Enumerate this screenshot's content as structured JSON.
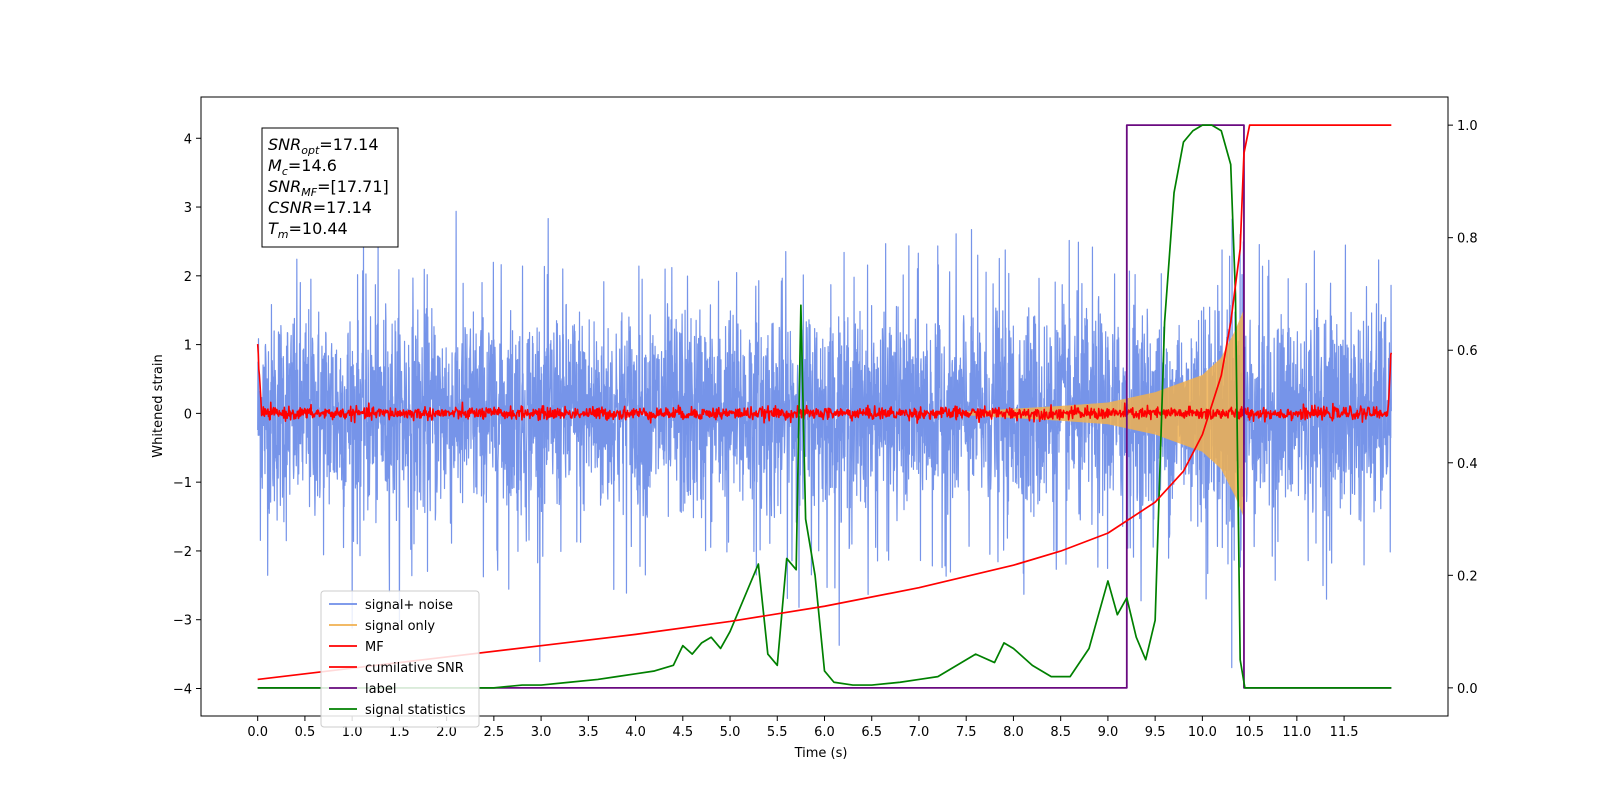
{
  "chart_data": {
    "type": "line",
    "xlabel": "Time (s)",
    "ylabel": "Whitened strain",
    "xlim": [
      -0.6,
      12.6
    ],
    "ylim": [
      -4.4,
      4.6
    ],
    "y2lim": [
      -0.05,
      1.05
    ],
    "x_ticks": [
      0.0,
      0.5,
      1.0,
      1.5,
      2.0,
      2.5,
      3.0,
      3.5,
      4.0,
      4.5,
      5.0,
      5.5,
      6.0,
      6.5,
      7.0,
      7.5,
      8.0,
      8.5,
      9.0,
      9.5,
      10.0,
      10.5,
      11.0,
      11.5
    ],
    "x_tick_labels": [
      "0.0",
      "0.5",
      "1.0",
      "1.5",
      "2.0",
      "2.5",
      "3.0",
      "3.5",
      "4.0",
      "4.5",
      "5.0",
      "5.5",
      "6.0",
      "6.5",
      "7.0",
      "7.5",
      "8.0",
      "8.5",
      "9.0",
      "9.5",
      "10.0",
      "10.5",
      "11.0",
      "11.5"
    ],
    "y_ticks": [
      4,
      3,
      2,
      1,
      0,
      -1,
      -2,
      -3,
      -4
    ],
    "y_tick_labels": [
      "4",
      "3",
      "2",
      "1",
      "0",
      "−1",
      "−2",
      "−3",
      "−4"
    ],
    "y2_ticks": [
      1.0,
      0.8,
      0.6,
      0.4,
      0.2,
      0.0
    ],
    "y2_tick_labels": [
      "1.0",
      "0.8",
      "0.6",
      "0.4",
      "0.2",
      "0.0"
    ],
    "legend_position": "lower-left",
    "grid": false,
    "series": [
      {
        "name": "signal+ noise",
        "axis": "left",
        "color": "#6f8ee8",
        "kind": "noise",
        "x_range": [
          0.0,
          12.0
        ],
        "sigma": 1.0,
        "chirp_end": 10.44
      },
      {
        "name": "signal only",
        "axis": "left",
        "color": "#f0b050",
        "kind": "chirp",
        "x_range": [
          7.5,
          10.44
        ],
        "envelope": [
          [
            7.5,
            0.02
          ],
          [
            8.5,
            0.1
          ],
          [
            9.0,
            0.15
          ],
          [
            9.5,
            0.3
          ],
          [
            10.0,
            0.55
          ],
          [
            10.2,
            0.8
          ],
          [
            10.35,
            1.2
          ],
          [
            10.44,
            1.5
          ]
        ]
      },
      {
        "name": "MF",
        "axis": "left",
        "color": "#ff0000",
        "kind": "mf",
        "x_range": [
          0.0,
          12.0
        ],
        "start_value": 1.0,
        "end_value": 0.9
      },
      {
        "name": "cumilative SNR",
        "axis": "right",
        "color": "#ff0000",
        "kind": "curve",
        "x": [
          0.0,
          0.5,
          1.0,
          2.0,
          3.0,
          4.0,
          5.0,
          6.0,
          7.0,
          8.0,
          8.5,
          9.0,
          9.5,
          9.8,
          10.0,
          10.2,
          10.3,
          10.4,
          10.44,
          10.5,
          11.0,
          11.5,
          12.0
        ],
        "y": [
          0.015,
          0.025,
          0.035,
          0.055,
          0.075,
          0.095,
          0.118,
          0.145,
          0.178,
          0.218,
          0.243,
          0.275,
          0.33,
          0.385,
          0.45,
          0.555,
          0.65,
          0.78,
          0.95,
          1.0,
          1.0,
          1.0,
          1.0
        ]
      },
      {
        "name": "label",
        "axis": "right",
        "color": "#6a0a80",
        "kind": "step",
        "x": [
          0.0,
          9.2,
          9.2,
          10.44,
          10.44,
          10.5,
          11.0,
          12.0
        ],
        "y": [
          0.0,
          0.0,
          1.0,
          1.0,
          0.0,
          0.0,
          0.0,
          0.0
        ]
      },
      {
        "name": "signal statistics",
        "axis": "right",
        "color": "#008000",
        "kind": "curve",
        "x": [
          0.0,
          0.5,
          1.0,
          1.5,
          2.0,
          2.5,
          2.8,
          3.0,
          3.3,
          3.6,
          3.8,
          4.0,
          4.2,
          4.4,
          4.5,
          4.6,
          4.7,
          4.8,
          4.9,
          5.0,
          5.1,
          5.2,
          5.3,
          5.4,
          5.5,
          5.6,
          5.7,
          5.75,
          5.8,
          5.9,
          6.0,
          6.1,
          6.3,
          6.5,
          6.8,
          7.0,
          7.2,
          7.4,
          7.6,
          7.8,
          7.9,
          8.0,
          8.2,
          8.4,
          8.6,
          8.8,
          9.0,
          9.1,
          9.2,
          9.3,
          9.4,
          9.5,
          9.6,
          9.7,
          9.8,
          9.9,
          10.0,
          10.1,
          10.2,
          10.3,
          10.35,
          10.4,
          10.45,
          10.5,
          10.7,
          11.0,
          11.5,
          12.0
        ],
        "y": [
          0.0,
          0.0,
          0.0,
          0.0,
          0.0,
          0.0,
          0.005,
          0.005,
          0.01,
          0.015,
          0.02,
          0.025,
          0.03,
          0.04,
          0.075,
          0.06,
          0.08,
          0.09,
          0.07,
          0.1,
          0.14,
          0.18,
          0.22,
          0.06,
          0.04,
          0.23,
          0.21,
          0.68,
          0.3,
          0.2,
          0.03,
          0.01,
          0.005,
          0.005,
          0.01,
          0.015,
          0.02,
          0.04,
          0.06,
          0.045,
          0.08,
          0.07,
          0.04,
          0.02,
          0.02,
          0.07,
          0.19,
          0.13,
          0.16,
          0.09,
          0.05,
          0.12,
          0.65,
          0.88,
          0.97,
          0.99,
          1.0,
          1.0,
          0.99,
          0.93,
          0.7,
          0.05,
          0.0,
          0.0,
          0.0,
          0.0,
          0.0,
          0.0
        ]
      }
    ]
  },
  "info_box": {
    "lines": [
      {
        "base": "SNR",
        "sub": "opt",
        "rest": "=17.14"
      },
      {
        "base": "M",
        "sub": "c",
        "rest": "=14.6"
      },
      {
        "base": "SNR",
        "sub": "MF",
        "rest": "=[17.71]"
      },
      {
        "base": "CSNR",
        "sub": "",
        "rest": "=17.14"
      },
      {
        "base": "T",
        "sub": "m",
        "rest": "=10.44"
      }
    ]
  }
}
